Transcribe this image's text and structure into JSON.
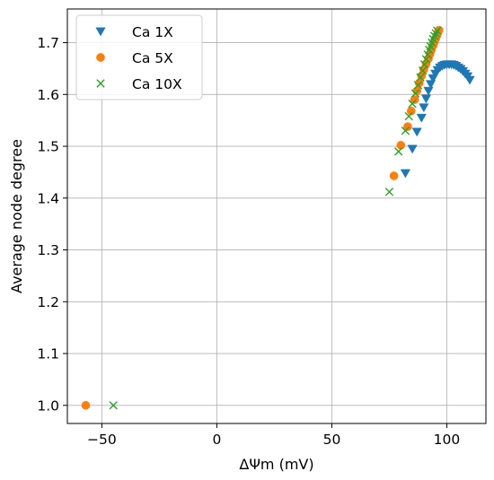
{
  "chart_data": {
    "type": "scatter",
    "title": "",
    "xlabel": "ΔΨm (mV)",
    "ylabel": "Average node degree",
    "xlim": [
      -65,
      117
    ],
    "ylim": [
      0.965,
      1.765
    ],
    "xticks": [
      -50,
      0,
      50,
      100
    ],
    "xtick_labels": [
      "−50",
      "0",
      "50",
      "100"
    ],
    "yticks": [
      1.0,
      1.1,
      1.2,
      1.3,
      1.4,
      1.5,
      1.6,
      1.7
    ],
    "ytick_labels": [
      "1.0",
      "1.1",
      "1.2",
      "1.3",
      "1.4",
      "1.5",
      "1.6",
      "1.7"
    ],
    "grid": true,
    "legend_position": "top-left",
    "series": [
      {
        "name": "Ca 1X",
        "marker": "triangle-down",
        "color": "#1f77b4",
        "points": [
          [
            82,
            1.448
          ],
          [
            85,
            1.495
          ],
          [
            87,
            1.528
          ],
          [
            89,
            1.555
          ],
          [
            90,
            1.575
          ],
          [
            91,
            1.592
          ],
          [
            92,
            1.607
          ],
          [
            93,
            1.62
          ],
          [
            94,
            1.631
          ],
          [
            95,
            1.64
          ],
          [
            96,
            1.647
          ],
          [
            97,
            1.652
          ],
          [
            98,
            1.655
          ],
          [
            99,
            1.657
          ],
          [
            100,
            1.658
          ],
          [
            101,
            1.658
          ],
          [
            102,
            1.658
          ],
          [
            103,
            1.657
          ],
          [
            104,
            1.655
          ],
          [
            105,
            1.652
          ],
          [
            106,
            1.649
          ],
          [
            107,
            1.645
          ],
          [
            108,
            1.64
          ],
          [
            109,
            1.635
          ],
          [
            110,
            1.628
          ]
        ]
      },
      {
        "name": "Ca 5X",
        "marker": "circle",
        "color": "#ff7f0e",
        "points": [
          [
            -57,
            1.0
          ],
          [
            77,
            1.443
          ],
          [
            80,
            1.502
          ],
          [
            83,
            1.538
          ],
          [
            84.5,
            1.568
          ],
          [
            86,
            1.59
          ],
          [
            87,
            1.607
          ],
          [
            88,
            1.622
          ],
          [
            89,
            1.636
          ],
          [
            90,
            1.648
          ],
          [
            91,
            1.659
          ],
          [
            92,
            1.669
          ],
          [
            92.7,
            1.678
          ],
          [
            93.3,
            1.686
          ],
          [
            94,
            1.694
          ],
          [
            94.6,
            1.701
          ],
          [
            95.2,
            1.708
          ],
          [
            95.7,
            1.714
          ],
          [
            96.2,
            1.72
          ],
          [
            96.6,
            1.724
          ]
        ]
      },
      {
        "name": "Ca 10X",
        "marker": "x",
        "color": "#2ca02c",
        "points": [
          [
            -45,
            1.0
          ],
          [
            75,
            1.412
          ],
          [
            79,
            1.49
          ],
          [
            82,
            1.53
          ],
          [
            83.5,
            1.558
          ],
          [
            85,
            1.582
          ],
          [
            86.3,
            1.602
          ],
          [
            87.5,
            1.618
          ],
          [
            88.5,
            1.633
          ],
          [
            89.5,
            1.646
          ],
          [
            90.3,
            1.658
          ],
          [
            91,
            1.668
          ],
          [
            91.7,
            1.677
          ],
          [
            92.3,
            1.686
          ],
          [
            92.9,
            1.693
          ],
          [
            93.5,
            1.7
          ],
          [
            94,
            1.707
          ],
          [
            94.6,
            1.713
          ],
          [
            95.2,
            1.718
          ],
          [
            95.8,
            1.723
          ]
        ]
      }
    ]
  }
}
